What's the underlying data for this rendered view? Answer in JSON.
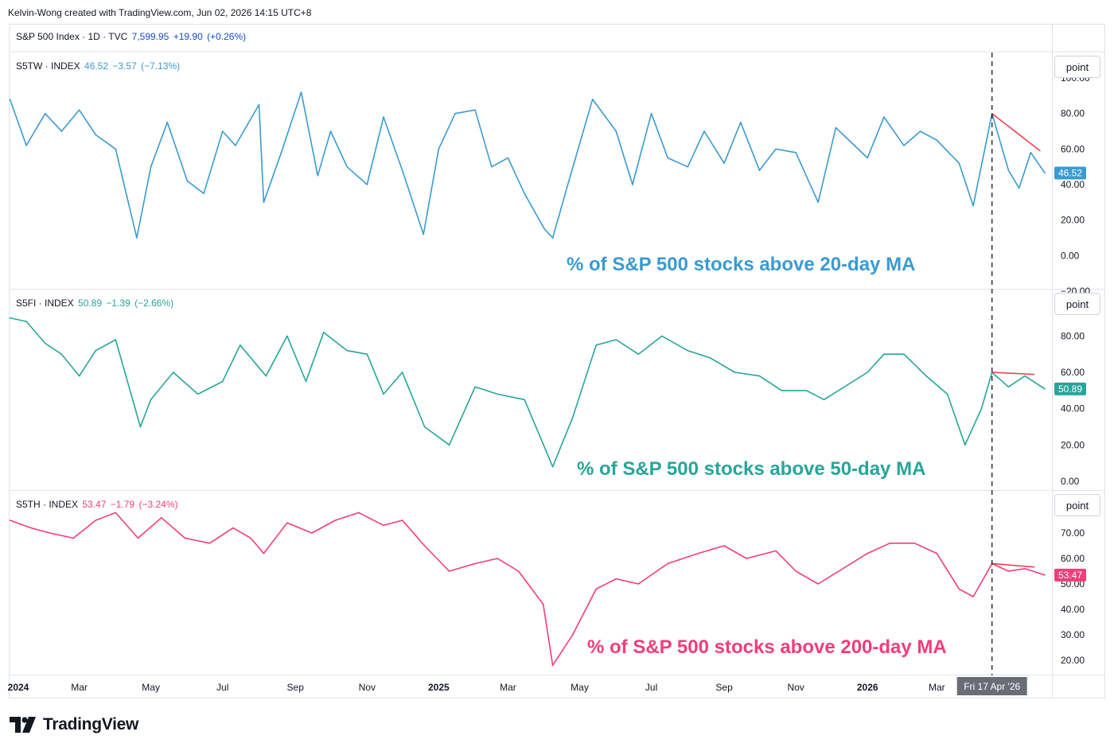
{
  "header": {
    "credit": "Kelvin-Wong created with TradingView.com, Jun 02, 2026 14:15 UTC+8"
  },
  "main_series": {
    "symbol": "S&P 500 Index · 1D · TVC",
    "price": "7,599.95",
    "change": "+19.90",
    "change_pct": "(+0.26%)"
  },
  "toolbar": {
    "scale_label": "point"
  },
  "time_axis": {
    "labels": [
      "2024",
      "Mar",
      "May",
      "Jul",
      "Sep",
      "Nov",
      "2025",
      "Mar",
      "May",
      "Jul",
      "Sep",
      "Nov",
      "2026",
      "Mar"
    ],
    "bold": [
      "2024",
      "2025",
      "2026"
    ],
    "crosshair_label": "Fri 17 Apr '26"
  },
  "branding": {
    "logo_text": "TradingView"
  },
  "chart_data": [
    {
      "type": "line",
      "symbol": "S5TW · INDEX",
      "last": "46.52",
      "change": "−3.57",
      "change_pct": "(−7.13%)",
      "price_label": "46.52",
      "annotation": "% of S&P 500 stocks above 20-day MA",
      "color": "#3a9bd0",
      "ylim": [
        -20,
        100
      ],
      "y_ticks": [
        "100.00",
        "80.00",
        "60.00",
        "40.00",
        "20.00",
        "0.00",
        "-20.00"
      ],
      "x": [
        "2024-01-02",
        "2024-01-16",
        "2024-02-01",
        "2024-02-15",
        "2024-03-01",
        "2024-03-15",
        "2024-04-01",
        "2024-04-19",
        "2024-05-01",
        "2024-05-15",
        "2024-06-01",
        "2024-06-15",
        "2024-07-01",
        "2024-07-12",
        "2024-08-01",
        "2024-08-05",
        "2024-08-20",
        "2024-09-06",
        "2024-09-20",
        "2024-10-01",
        "2024-10-15",
        "2024-11-01",
        "2024-11-15",
        "2024-12-01",
        "2024-12-19",
        "2025-01-01",
        "2025-01-15",
        "2025-02-01",
        "2025-02-15",
        "2025-03-01",
        "2025-03-15",
        "2025-04-01",
        "2025-04-08",
        "2025-04-20",
        "2025-05-12",
        "2025-06-01",
        "2025-06-15",
        "2025-07-01",
        "2025-07-15",
        "2025-08-01",
        "2025-08-15",
        "2025-09-01",
        "2025-09-15",
        "2025-10-01",
        "2025-10-15",
        "2025-11-01",
        "2025-11-20",
        "2025-12-05",
        "2026-01-01",
        "2026-01-15",
        "2026-02-01",
        "2026-02-15",
        "2026-03-01",
        "2026-03-20",
        "2026-04-01",
        "2026-04-17",
        "2026-05-01",
        "2026-05-10",
        "2026-05-20",
        "2026-06-01"
      ],
      "values": [
        88,
        62,
        80,
        70,
        82,
        68,
        60,
        10,
        50,
        75,
        42,
        35,
        70,
        62,
        85,
        30,
        58,
        92,
        45,
        70,
        50,
        40,
        78,
        48,
        12,
        60,
        80,
        82,
        50,
        55,
        35,
        15,
        10,
        38,
        88,
        70,
        40,
        80,
        55,
        50,
        70,
        52,
        75,
        48,
        60,
        58,
        30,
        72,
        55,
        78,
        62,
        70,
        65,
        52,
        28,
        80,
        48,
        38,
        58,
        46.52
      ]
    },
    {
      "type": "line",
      "symbol": "S5FI · INDEX",
      "last": "50.89",
      "change": "−1.39",
      "change_pct": "(−2.66%)",
      "price_label": "50.89",
      "annotation": "% of S&P 500 stocks above 50-day MA",
      "color": "#26a69a",
      "ylim": [
        0,
        92
      ],
      "y_ticks": [
        "80.00",
        "60.00",
        "40.00",
        "20.00",
        "0.00"
      ],
      "x": [
        "2024-01-02",
        "2024-01-16",
        "2024-02-01",
        "2024-02-15",
        "2024-03-01",
        "2024-03-15",
        "2024-04-01",
        "2024-04-22",
        "2024-05-01",
        "2024-05-20",
        "2024-06-10",
        "2024-07-01",
        "2024-07-16",
        "2024-08-07",
        "2024-08-25",
        "2024-09-10",
        "2024-09-25",
        "2024-10-15",
        "2024-11-01",
        "2024-11-15",
        "2024-12-01",
        "2024-12-20",
        "2025-01-10",
        "2025-02-01",
        "2025-02-20",
        "2025-03-15",
        "2025-04-08",
        "2025-04-25",
        "2025-05-15",
        "2025-06-01",
        "2025-06-20",
        "2025-07-10",
        "2025-08-01",
        "2025-08-20",
        "2025-09-10",
        "2025-10-01",
        "2025-10-20",
        "2025-11-10",
        "2025-11-25",
        "2026-01-01",
        "2026-01-15",
        "2026-02-01",
        "2026-02-20",
        "2026-03-10",
        "2026-03-25",
        "2026-04-08",
        "2026-04-17",
        "2026-05-01",
        "2026-05-15",
        "2026-06-01"
      ],
      "values": [
        90,
        88,
        76,
        70,
        58,
        72,
        78,
        30,
        45,
        60,
        48,
        55,
        75,
        58,
        80,
        55,
        82,
        72,
        70,
        48,
        60,
        30,
        20,
        52,
        48,
        45,
        8,
        35,
        75,
        78,
        70,
        80,
        72,
        68,
        60,
        58,
        50,
        50,
        45,
        60,
        70,
        70,
        58,
        48,
        20,
        40,
        60,
        52,
        58,
        50.89
      ]
    },
    {
      "type": "line",
      "symbol": "S5TH · INDEX",
      "last": "53.47",
      "change": "−1.79",
      "change_pct": "(−3.24%)",
      "price_label": "53.47",
      "annotation": "% of S&P 500 stocks above 200-day MA",
      "color": "#f23d7a",
      "ylim": [
        15,
        80
      ],
      "y_ticks": [
        "70.00",
        "60.00",
        "50.00",
        "40.00",
        "30.00",
        "20.00"
      ],
      "x": [
        "2024-01-02",
        "2024-01-20",
        "2024-02-05",
        "2024-02-25",
        "2024-03-15",
        "2024-04-01",
        "2024-04-20",
        "2024-05-10",
        "2024-05-30",
        "2024-06-20",
        "2024-07-10",
        "2024-07-25",
        "2024-08-05",
        "2024-08-25",
        "2024-09-15",
        "2024-10-05",
        "2024-10-25",
        "2024-11-15",
        "2024-12-01",
        "2024-12-20",
        "2025-01-10",
        "2025-02-01",
        "2025-02-20",
        "2025-03-10",
        "2025-03-31",
        "2025-04-08",
        "2025-04-25",
        "2025-05-15",
        "2025-06-01",
        "2025-06-20",
        "2025-07-15",
        "2025-08-10",
        "2025-09-01",
        "2025-09-20",
        "2025-10-15",
        "2025-11-01",
        "2025-11-20",
        "2026-01-01",
        "2026-01-20",
        "2026-02-10",
        "2026-03-01",
        "2026-03-20",
        "2026-04-01",
        "2026-04-17",
        "2026-05-01",
        "2026-05-15",
        "2026-06-01"
      ],
      "values": [
        75,
        72,
        70,
        68,
        75,
        78,
        68,
        76,
        68,
        66,
        72,
        68,
        62,
        74,
        70,
        75,
        78,
        73,
        75,
        65,
        55,
        58,
        60,
        55,
        42,
        18,
        30,
        48,
        52,
        50,
        58,
        62,
        65,
        60,
        63,
        55,
        50,
        62,
        66,
        66,
        62,
        48,
        45,
        58,
        55,
        56,
        53.47
      ]
    }
  ]
}
